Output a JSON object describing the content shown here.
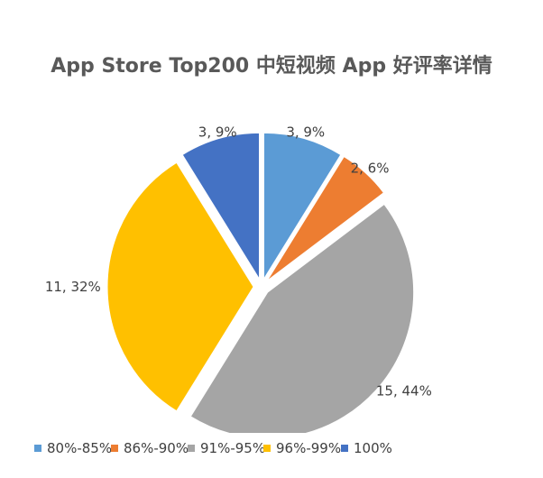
{
  "chart_data": {
    "type": "pie",
    "title": "App Store Top200 中短视频 App 好评率详情",
    "categories": [
      "80%-85%",
      "86%-90%",
      "91%-95%",
      "96%-99%",
      "100%"
    ],
    "values": [
      3,
      2,
      15,
      11,
      3
    ],
    "percent_labels": [
      "9%",
      "6%",
      "44%",
      "32%",
      "9%"
    ],
    "data_labels": [
      "3, 9%",
      "2, 6%",
      "15, 44%",
      "11, 32%",
      "3, 9%"
    ],
    "colors": [
      "#5B9BD5",
      "#ED7D31",
      "#A5A5A5",
      "#FFC000",
      "#4472C4"
    ],
    "start_angle": "12 o'clock",
    "direction": "clockwise",
    "exploded": true,
    "legend_position": "bottom"
  }
}
